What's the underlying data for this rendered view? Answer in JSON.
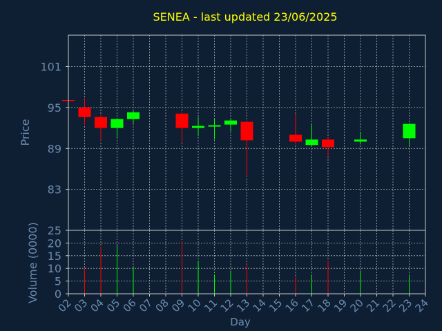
{
  "chart_data": {
    "type": "candlestick",
    "title": "SENEA - last updated 23/06/2025",
    "xlabel": "Day",
    "ylabel_price": "Price",
    "ylabel_volume": "Volume (0000)",
    "x_ticks": [
      "02",
      "03",
      "04",
      "05",
      "06",
      "07",
      "08",
      "09",
      "10",
      "11",
      "12",
      "13",
      "14",
      "15",
      "16",
      "17",
      "18",
      "19",
      "20",
      "21",
      "22",
      "23",
      "24"
    ],
    "price_ticks": [
      83,
      89,
      95,
      101
    ],
    "price_range": [
      77,
      105.6
    ],
    "volume_ticks": [
      0,
      5,
      10,
      15,
      20,
      25
    ],
    "volume_range": [
      0,
      25
    ],
    "grid": true,
    "colors": {
      "background": "#0f1f33",
      "title": "#ffff00",
      "axis_label": "#6a8caf",
      "frame": "#c8c8c8",
      "grid": "#b0b0b0",
      "up": "#00ff00",
      "down": "#ff0000"
    },
    "candles": [
      {
        "day": "02",
        "open": 96.1,
        "close": 96.1,
        "high": 96.1,
        "low": 96.1,
        "volume": 0,
        "dir": "down"
      },
      {
        "day": "03",
        "open": 95,
        "close": 93.6,
        "high": 96.4,
        "low": 92.4,
        "volume": 10,
        "dir": "down"
      },
      {
        "day": "04",
        "open": 93.6,
        "close": 92.0,
        "high": 93.9,
        "low": 90.1,
        "volume": 18.5,
        "dir": "down"
      },
      {
        "day": "05",
        "open": 92.0,
        "close": 93.3,
        "high": 93.5,
        "low": 90.4,
        "volume": 19,
        "dir": "up"
      },
      {
        "day": "06",
        "open": 93.3,
        "close": 94.3,
        "high": 94.5,
        "low": 92.7,
        "volume": 10.5,
        "dir": "up"
      },
      {
        "day": "09",
        "open": 94.1,
        "close": 92.0,
        "high": 94.3,
        "low": 89.8,
        "volume": 20.5,
        "dir": "down"
      },
      {
        "day": "10",
        "open": 92.0,
        "close": 92.3,
        "high": 93.6,
        "low": 90.8,
        "volume": 13,
        "dir": "up"
      },
      {
        "day": "11",
        "open": 92.2,
        "close": 92.4,
        "high": 93.3,
        "low": 90.3,
        "volume": 7.5,
        "dir": "up"
      },
      {
        "day": "12",
        "open": 92.5,
        "close": 93.1,
        "high": 93.3,
        "low": 91.5,
        "volume": 9,
        "dir": "up"
      },
      {
        "day": "13",
        "open": 92.9,
        "close": 90.2,
        "high": 93.1,
        "low": 84.9,
        "volume": 11.5,
        "dir": "down"
      },
      {
        "day": "16",
        "open": 91.0,
        "close": 90.0,
        "high": 94.1,
        "low": 89.6,
        "volume": 7,
        "dir": "down"
      },
      {
        "day": "17",
        "open": 89.5,
        "close": 90.3,
        "high": 92.6,
        "low": 89.4,
        "volume": 7.5,
        "dir": "up"
      },
      {
        "day": "18",
        "open": 90.3,
        "close": 89.2,
        "high": 90.6,
        "low": 87.9,
        "volume": 13,
        "dir": "down"
      },
      {
        "day": "20",
        "open": 90.0,
        "close": 90.3,
        "high": 91.4,
        "low": 89.6,
        "volume": 9,
        "dir": "up"
      },
      {
        "day": "23",
        "open": 90.5,
        "close": 92.6,
        "high": 92.7,
        "low": 89.4,
        "volume": 7,
        "dir": "up"
      }
    ]
  }
}
